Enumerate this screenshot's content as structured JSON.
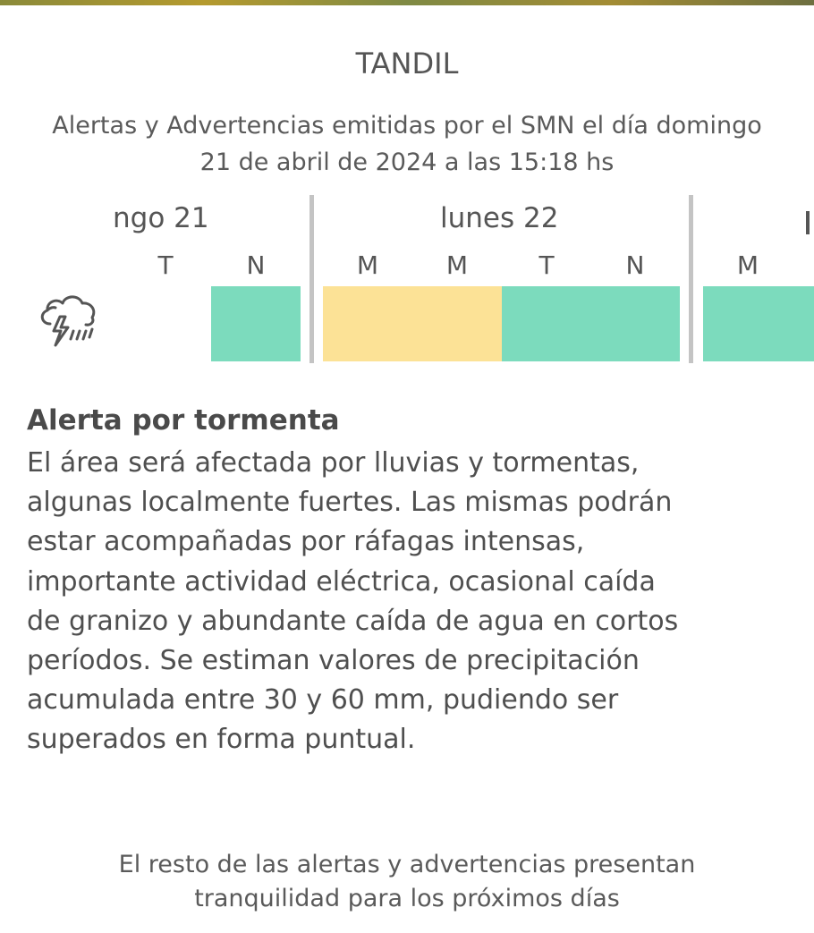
{
  "header": {
    "city": "TANDIL",
    "issued_line1": "Alertas y Advertencias emitidas por el SMN el día domingo",
    "issued_line2": "21 de abril de 2024 a las 15:18 hs"
  },
  "timeline": {
    "days": [
      {
        "label": "ngo 21",
        "periods": [
          "T",
          "N"
        ]
      },
      {
        "label": "lunes 22",
        "periods": [
          "M",
          "M",
          "T",
          "N"
        ]
      },
      {
        "label": "",
        "periods": [
          "M"
        ]
      }
    ],
    "row_icon": "thunderstorm-rain-icon",
    "colors": {
      "green": "#7cdbbd",
      "yellow": "#fce296",
      "separator": "#c4c4c4"
    }
  },
  "alert": {
    "title": "Alerta por tormenta",
    "line1": "El área será afectada por lluvias y tormentas,",
    "line2": "algunas localmente fuertes. Las mismas podrán",
    "line3": "estar acompañadas por ráfagas intensas,",
    "line4": "importante actividad eléctrica, ocasional caída",
    "line5": "de granizo y abundante caída de agua en cortos",
    "line6": "períodos. Se estiman valores de precipitación",
    "line7": "acumulada entre 30 y 60 mm, pudiendo ser",
    "line8": "superados en forma puntual."
  },
  "footer": {
    "line1": "El resto de las alertas y advertencias presentan",
    "line2": "tranquilidad para los próximos días"
  }
}
